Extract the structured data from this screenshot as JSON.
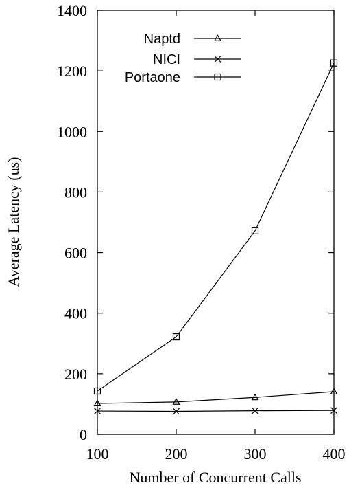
{
  "chart_data": {
    "type": "line",
    "xlabel": "Number of Concurrent Calls",
    "ylabel": "Average Latency (us)",
    "x": [
      100,
      200,
      300,
      400
    ],
    "xlim": [
      100,
      400
    ],
    "ylim": [
      0,
      1400
    ],
    "xticks": [
      100,
      200,
      300,
      400
    ],
    "yticks": [
      0,
      200,
      400,
      600,
      800,
      1000,
      1200,
      1400
    ],
    "grid": false,
    "legend_position": "top-left",
    "series": [
      {
        "name": "Naptd",
        "marker": "triangle",
        "values": [
          102,
          107,
          122,
          141
        ]
      },
      {
        "name": "NICI",
        "marker": "x",
        "values": [
          77,
          76,
          78,
          79
        ]
      },
      {
        "name": "Portaone",
        "marker": "square",
        "values": [
          143,
          322,
          672,
          1226
        ]
      }
    ]
  }
}
